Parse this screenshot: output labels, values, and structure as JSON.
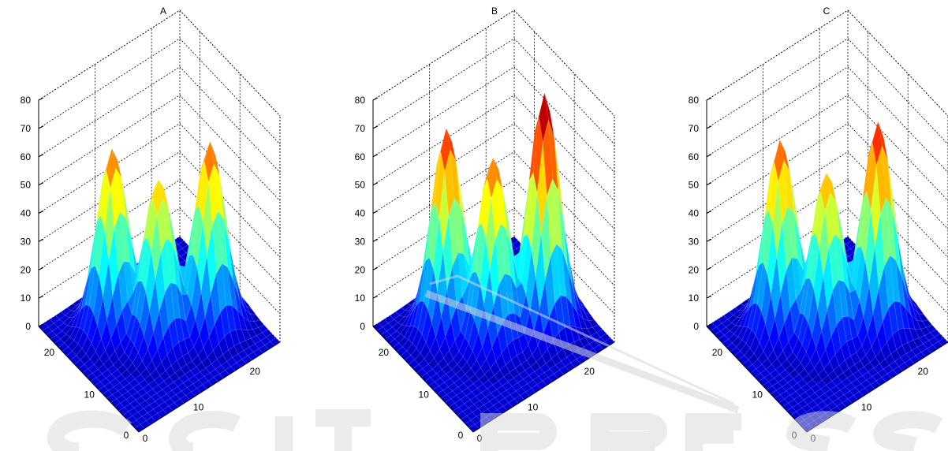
{
  "chart_data": [
    {
      "type": "surface",
      "title": "A",
      "zlim": [
        0,
        80
      ],
      "z_ticks": [
        "0",
        "10",
        "20",
        "30",
        "40",
        "50",
        "60",
        "70",
        "80"
      ],
      "x_ticks": [
        "0",
        "10",
        "20"
      ],
      "y_ticks": [
        "0",
        "10",
        "20"
      ],
      "grid": true,
      "colormap": "jet",
      "peaks": [
        {
          "x": 8,
          "y": 18,
          "z": 62
        },
        {
          "x": 19,
          "y": 9,
          "z": 64
        },
        {
          "x": 12,
          "y": 12,
          "z": 50
        }
      ]
    },
    {
      "type": "surface",
      "title": "B",
      "zlim": [
        0,
        80
      ],
      "z_ticks": [
        "0",
        "10",
        "20",
        "30",
        "40",
        "50",
        "60",
        "70",
        "80"
      ],
      "x_ticks": [
        "0",
        "10",
        "20"
      ],
      "y_ticks": [
        "0",
        "10",
        "20"
      ],
      "grid": true,
      "colormap": "jet",
      "peaks": [
        {
          "x": 8,
          "y": 18,
          "z": 69
        },
        {
          "x": 19,
          "y": 9,
          "z": 81
        },
        {
          "x": 12,
          "y": 12,
          "z": 57
        }
      ]
    },
    {
      "type": "surface",
      "title": "C",
      "zlim": [
        0,
        80
      ],
      "z_ticks": [
        "0",
        "10",
        "20",
        "30",
        "40",
        "50",
        "60",
        "70",
        "80"
      ],
      "x_ticks": [
        "0",
        "10",
        "20"
      ],
      "y_ticks": [
        "0",
        "10",
        "20"
      ],
      "grid": true,
      "colormap": "jet",
      "peaks": [
        {
          "x": 8,
          "y": 18,
          "z": 65
        },
        {
          "x": 19,
          "y": 9,
          "z": 71
        },
        {
          "x": 12,
          "y": 12,
          "z": 52
        }
      ]
    }
  ]
}
